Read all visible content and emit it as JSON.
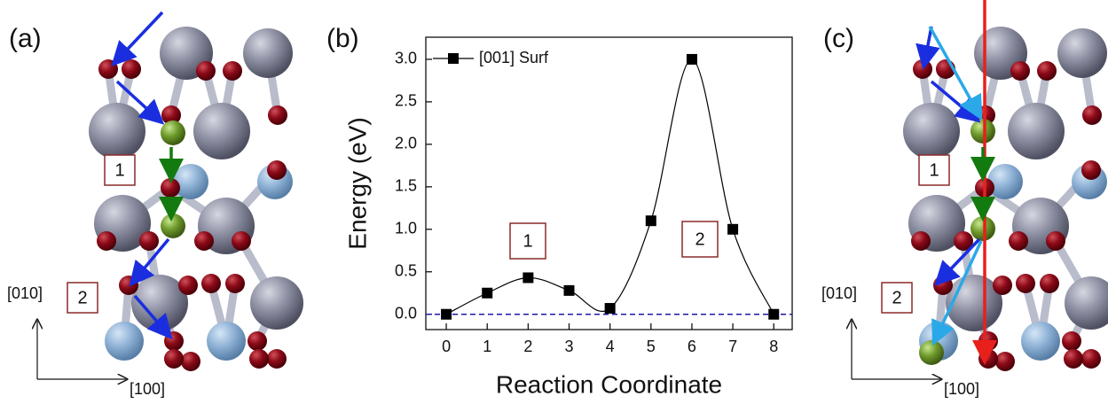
{
  "panels": [
    {
      "label": "(a)",
      "boxes": [
        "1",
        "2"
      ],
      "axis_labels": [
        "[010]",
        "[100]"
      ]
    },
    {
      "label": "(c)",
      "boxes": [
        "1",
        "2"
      ],
      "axis_labels": [
        "[010]",
        "[100]"
      ]
    }
  ],
  "chart_data": {
    "type": "line",
    "panel_label": "(b)",
    "x_label": "Reaction Coordinate",
    "y_label": "Energy (eV)",
    "x": [
      0,
      1,
      2,
      3,
      4,
      5,
      6,
      7,
      8
    ],
    "series": [
      {
        "name": "[001] Surf",
        "color": "#000000",
        "values": [
          0,
          0.25,
          0.43,
          0.28,
          0.07,
          1.1,
          3.0,
          1.0,
          0.0
        ]
      }
    ],
    "xlim": [
      -0.5,
      8.45
    ],
    "ylim": [
      -0.18,
      3.26
    ],
    "xticks": [
      0,
      1,
      2,
      3,
      4,
      5,
      6,
      7,
      8
    ],
    "yticks": [
      {
        "value": 0,
        "label": "0.0"
      },
      {
        "value": 0.5,
        "label": "0.5"
      },
      {
        "value": 1,
        "label": "1.0"
      },
      {
        "value": 1.5,
        "label": "1.5"
      },
      {
        "value": 2,
        "label": "2.0"
      },
      {
        "value": 2.5,
        "label": "2.5"
      },
      {
        "value": 3,
        "label": "3.0"
      }
    ],
    "reference_line": 0,
    "reference_color": "#1a1aa6",
    "annotations": [
      "1",
      "2"
    ],
    "legend": "top-left"
  }
}
